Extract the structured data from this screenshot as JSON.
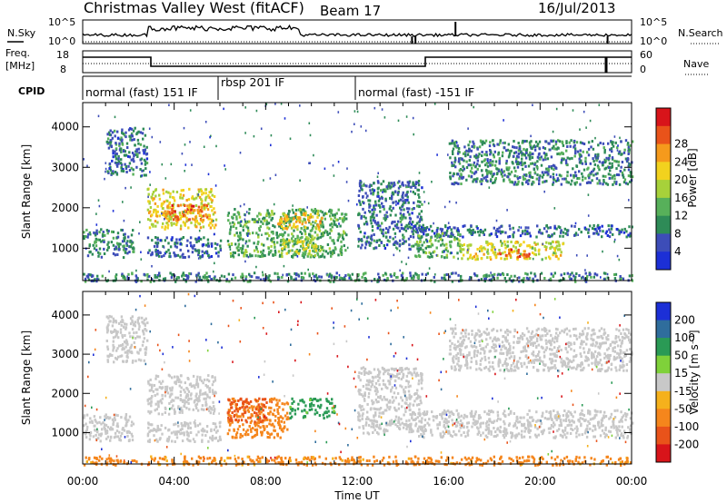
{
  "header": {
    "title": "Christmas Valley West (fitACF)",
    "beam": "Beam 17",
    "date": "16/Jul/2013"
  },
  "nsky_panel": {
    "left_label": "N.Sky",
    "right_label": "N.Search",
    "left_ticks": [
      "10^5",
      "10^0"
    ],
    "right_ticks": [
      "10^5",
      "10^0"
    ]
  },
  "freq_panel": {
    "left_label_line1": "Freq.",
    "left_label_line2": "[MHz]",
    "right_label": "Nave",
    "left_ticks": [
      "18",
      "8"
    ],
    "right_ticks": [
      "60",
      "0"
    ]
  },
  "cpid_panel": {
    "label": "CPID",
    "modes": [
      {
        "name": "normal (fast) 151 IF",
        "start_hour": 0,
        "end_hour": 5.9
      },
      {
        "name": "rbsp 201 IF",
        "start_hour": 5.9,
        "end_hour": 11.9
      },
      {
        "name": "normal (fast) -151 IF",
        "start_hour": 11.9,
        "end_hour": 24
      }
    ]
  },
  "chart_data": [
    {
      "type": "heatmap",
      "parameter": "Power",
      "ylabel": "Slant Range [km]",
      "ylim": [
        200,
        4600
      ],
      "yticks": [
        1000,
        2000,
        3000,
        4000
      ],
      "xlim": [
        0,
        24
      ],
      "colorbar_label": "Power [dB]",
      "colorbar_ticks": [
        "4",
        "8",
        "12",
        "16",
        "20",
        "24",
        "28"
      ],
      "colorbar_colors": [
        "#1c2fd6",
        "#3d4db8",
        "#2e8b57",
        "#57b05a",
        "#a7d13a",
        "#f2d21e",
        "#f59a1c",
        "#e9531a",
        "#d8141a"
      ],
      "echo_regions": [
        {
          "t0": 0.0,
          "t1": 2.2,
          "r0": 800,
          "r1": 1500,
          "value": 10
        },
        {
          "t0": 2.8,
          "t1": 5.8,
          "r0": 1500,
          "r1": 2500,
          "value": 20
        },
        {
          "t0": 3.5,
          "t1": 5.5,
          "r0": 1700,
          "r1": 2100,
          "value": 26
        },
        {
          "t0": 2.8,
          "t1": 6.0,
          "r0": 800,
          "r1": 1300,
          "value": 8
        },
        {
          "t0": 6.3,
          "t1": 11.5,
          "r0": 800,
          "r1": 2000,
          "value": 13
        },
        {
          "t0": 8.5,
          "t1": 10.5,
          "r0": 1500,
          "r1": 1900,
          "value": 22
        },
        {
          "t0": 8.5,
          "t1": 10.2,
          "r0": 900,
          "r1": 1300,
          "value": 18
        },
        {
          "t0": 12.0,
          "t1": 14.8,
          "r0": 1000,
          "r1": 2700,
          "value": 9
        },
        {
          "t0": 14.5,
          "t1": 24.0,
          "r0": 1300,
          "r1": 1600,
          "value": 8
        },
        {
          "t0": 14.5,
          "t1": 16.5,
          "r0": 800,
          "r1": 1400,
          "value": 14
        },
        {
          "t0": 16.5,
          "t1": 21.0,
          "r0": 750,
          "r1": 1200,
          "value": 19
        },
        {
          "t0": 18.0,
          "t1": 19.5,
          "r0": 800,
          "r1": 1000,
          "value": 26
        },
        {
          "t0": 1.0,
          "t1": 2.8,
          "r0": 2800,
          "r1": 4000,
          "value": 9
        },
        {
          "t0": 16.0,
          "t1": 24.0,
          "r0": 2600,
          "r1": 3700,
          "value": 10
        },
        {
          "t0": 0.0,
          "t1": 24.0,
          "r0": 200,
          "r1": 420,
          "value": 10
        }
      ]
    },
    {
      "type": "heatmap",
      "parameter": "Velocity",
      "ylabel": "Slant Range [km]",
      "xlabel": "Time UT",
      "ylim": [
        200,
        4600
      ],
      "yticks": [
        1000,
        2000,
        3000,
        4000
      ],
      "xlim": [
        0,
        24
      ],
      "xticks": [
        "00:00",
        "04:00",
        "08:00",
        "12:00",
        "16:00",
        "20:00",
        "00:00"
      ],
      "colorbar_label": "Velocity [m s⁻¹]",
      "colorbar_ticks": [
        "200",
        "100",
        "50",
        "15",
        "-15",
        "-50",
        "-100",
        "-200"
      ],
      "colorbar_colors": [
        "#1c2fd6",
        "#2f6d9c",
        "#2a9a55",
        "#7fd13a",
        "#c8c8c8",
        "#f5b11c",
        "#f5861c",
        "#e9531a",
        "#d8141a"
      ],
      "echo_regions": [
        {
          "t0": 0.0,
          "t1": 2.2,
          "r0": 800,
          "r1": 1500,
          "value": 0
        },
        {
          "t0": 2.8,
          "t1": 5.8,
          "r0": 1500,
          "r1": 2500,
          "value": 0
        },
        {
          "t0": 2.8,
          "t1": 6.0,
          "r0": 800,
          "r1": 1300,
          "value": 0
        },
        {
          "t0": 6.3,
          "t1": 9.0,
          "r0": 900,
          "r1": 1900,
          "value": -60
        },
        {
          "t0": 6.3,
          "t1": 8.0,
          "r0": 1300,
          "r1": 1900,
          "value": -120
        },
        {
          "t0": 9.0,
          "t1": 11.0,
          "r0": 1400,
          "r1": 1900,
          "value": 40
        },
        {
          "t0": 12.0,
          "t1": 14.8,
          "r0": 1000,
          "r1": 2700,
          "value": 0
        },
        {
          "t0": 14.5,
          "t1": 24.0,
          "r0": 900,
          "r1": 1600,
          "value": 0
        },
        {
          "t0": 1.0,
          "t1": 2.8,
          "r0": 2800,
          "r1": 4000,
          "value": 0
        },
        {
          "t0": 16.0,
          "t1": 24.0,
          "r0": 2600,
          "r1": 3700,
          "value": 0
        },
        {
          "t0": 0.0,
          "t1": 24.0,
          "r0": 200,
          "r1": 420,
          "value": -40
        }
      ]
    }
  ]
}
